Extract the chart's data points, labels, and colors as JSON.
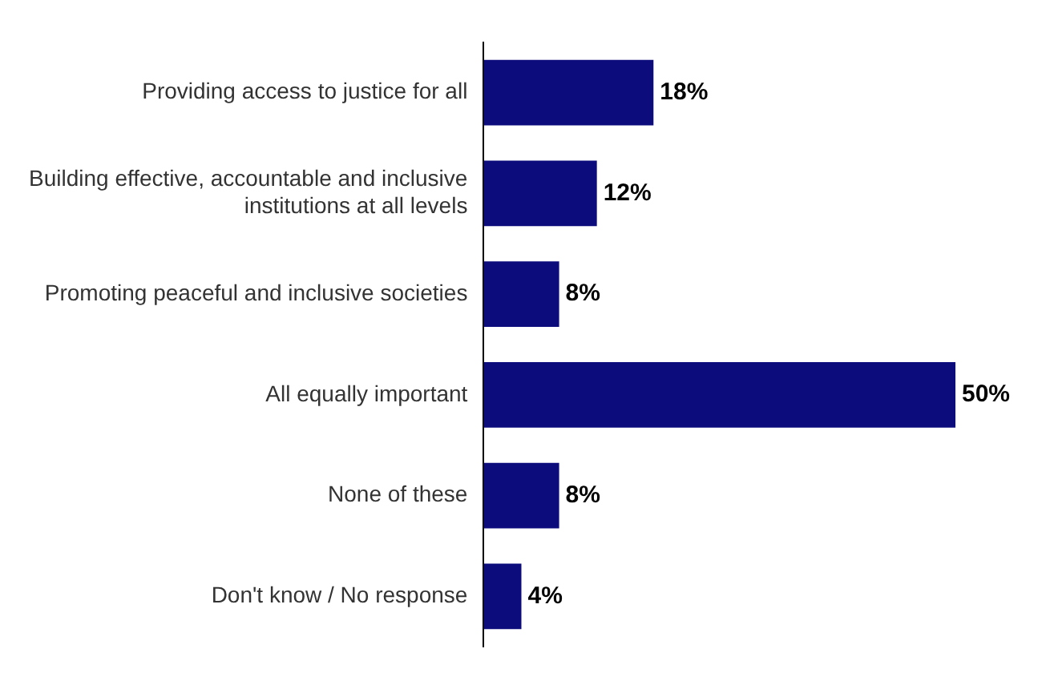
{
  "chart_data": {
    "type": "bar",
    "orientation": "horizontal",
    "categories": [
      "Providing access to justice for all",
      "Building effective, accountable and inclusive institutions at all levels",
      "Promoting peaceful and inclusive societies",
      "All equally important",
      "None of these",
      "Don't know / No response"
    ],
    "values": [
      18,
      12,
      8,
      50,
      8,
      4
    ],
    "value_labels": [
      "18%",
      "12%",
      "8%",
      "50%",
      "8%",
      "4%"
    ],
    "color": "#0c0c7c"
  }
}
